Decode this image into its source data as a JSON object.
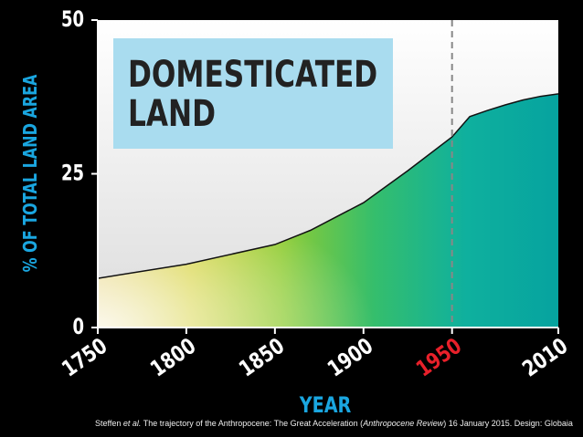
{
  "chart_data": {
    "type": "area",
    "title_lines": [
      "DOMESTICATED",
      "LAND"
    ],
    "y_label": "% OF TOTAL LAND AREA",
    "x_label": "YEAR",
    "x": [
      1750,
      1800,
      1850,
      1870,
      1900,
      1925,
      1950,
      1960,
      1970,
      1980,
      1990,
      2000,
      2010
    ],
    "values": [
      8,
      10.3,
      13.5,
      15.8,
      20.3,
      25.5,
      31,
      34.3,
      35.3,
      36.2,
      37,
      37.6,
      38
    ],
    "color": "#111111",
    "xlim": [
      1750,
      2010
    ],
    "xticks": [
      1750,
      1800,
      1850,
      1900,
      1950,
      2010
    ],
    "ylim": [
      0,
      50
    ],
    "yticks": [
      0,
      25,
      50
    ],
    "highlight_tick": 1950,
    "highlight_color": "#e8202a",
    "source": [
      {
        "text": "Steffen ",
        "italic": false
      },
      {
        "text": "et al.",
        "italic": true
      },
      {
        "text": " The trajectory of the Anthropocene: The Great Acceleration (",
        "italic": false
      },
      {
        "text": "Anthropocene Review",
        "italic": true
      },
      {
        "text": ") 16 January 2015. Design: Globaia",
        "italic": false
      }
    ]
  }
}
